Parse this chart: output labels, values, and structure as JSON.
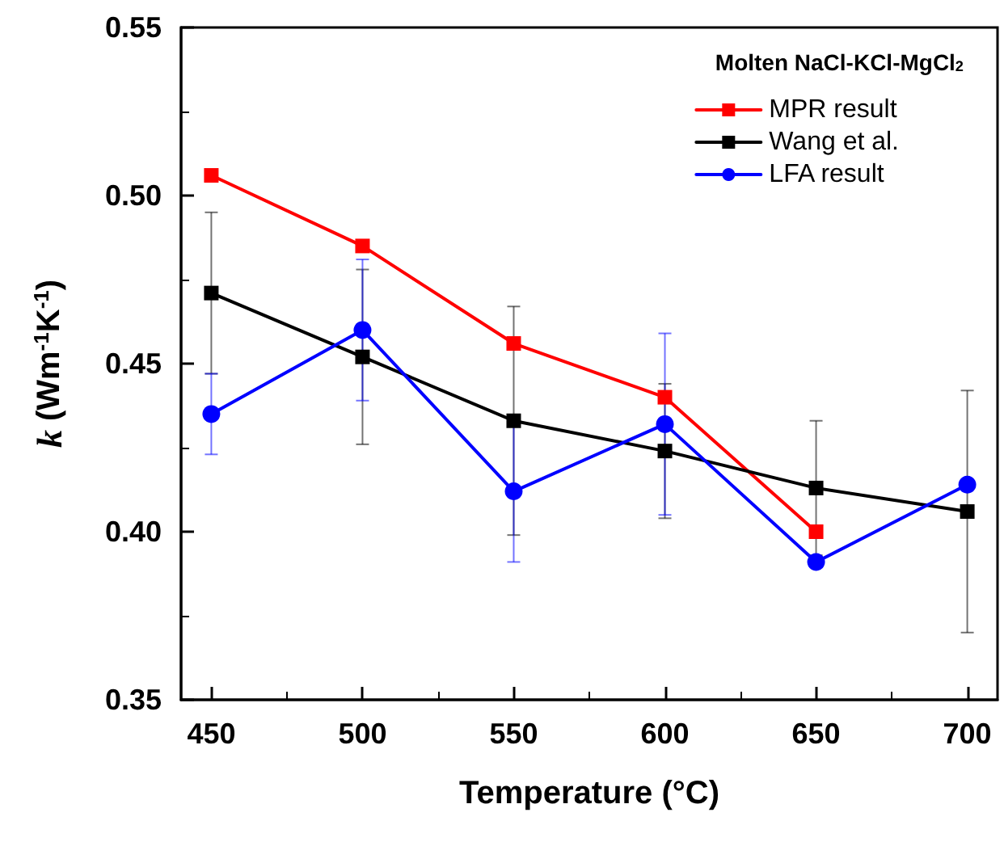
{
  "chart_data": {
    "type": "line",
    "xlabel": "Temperature (°C)",
    "ylabel": "k (Wm$^{-1}$K$^{-1}$)",
    "legend_title": "Molten NaCl-KCl-MgCl$_{2}$",
    "x": [
      450,
      500,
      550,
      600,
      650,
      700
    ],
    "series": [
      {
        "name": "MPR result",
        "color": "#ff0000",
        "marker": "square",
        "values": [
          0.506,
          0.485,
          0.456,
          0.44,
          0.4,
          null
        ]
      },
      {
        "name": "Wang et al.",
        "color": "#000000",
        "marker": "square",
        "values": [
          0.471,
          0.452,
          0.433,
          0.424,
          0.413,
          0.406
        ],
        "errors": [
          0.024,
          0.026,
          0.034,
          0.02,
          0.02,
          0.036
        ]
      },
      {
        "name": "LFA result",
        "color": "#0000ff",
        "marker": "circle",
        "values": [
          0.435,
          0.46,
          0.412,
          0.432,
          0.391,
          0.414
        ],
        "errors": [
          0.012,
          0.021,
          0.021,
          0.027,
          null,
          null
        ]
      }
    ],
    "xlim": [
      440,
      710
    ],
    "xticks": [
      450,
      500,
      550,
      600,
      650,
      700
    ],
    "ylim": [
      0.35,
      0.55
    ],
    "yticks": [
      0.35,
      {
        "value": 0.4,
        "label": "0.40"
      },
      0.45,
      {
        "value": 0.5,
        "label": "0.50"
      },
      0.55
    ],
    "grid": false,
    "legend": "top right",
    "line_style": "solid"
  }
}
